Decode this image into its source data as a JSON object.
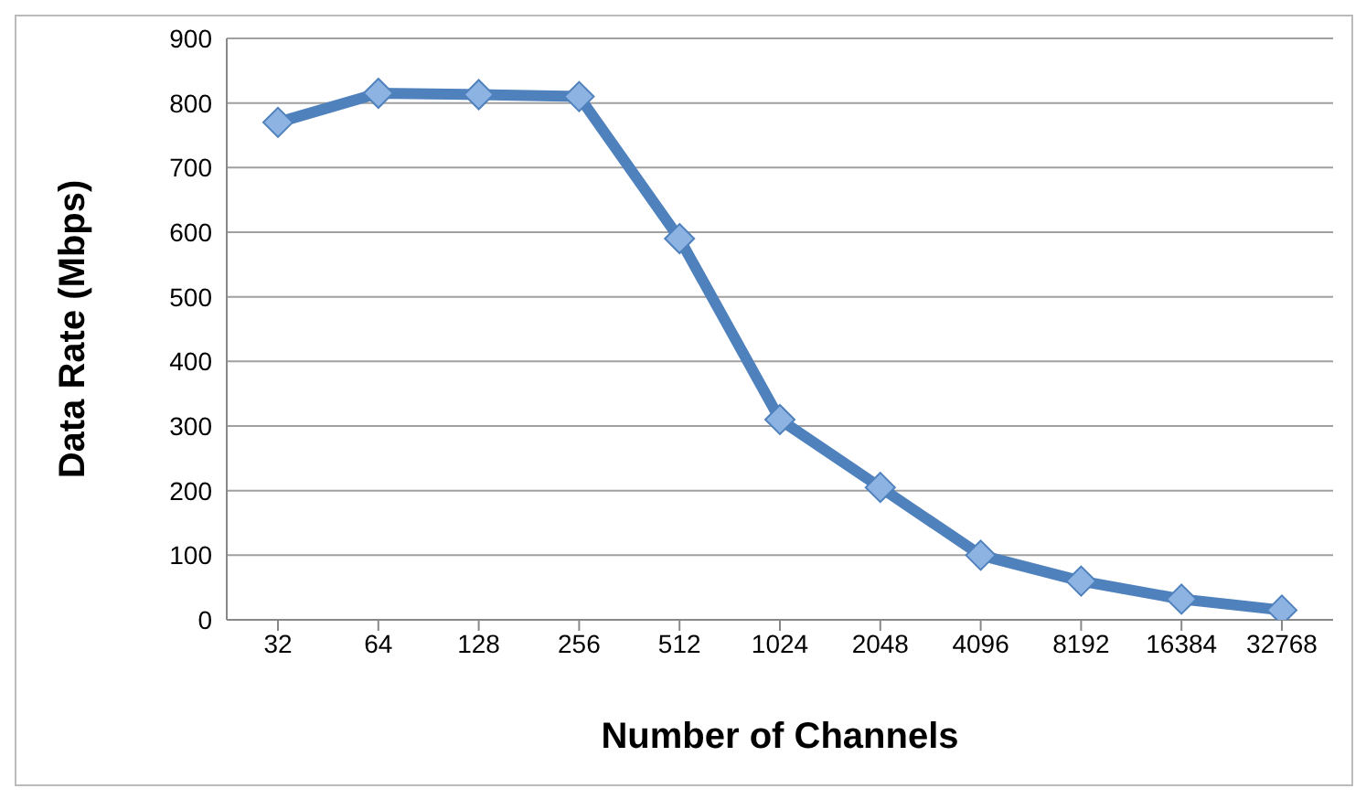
{
  "chart_data": {
    "type": "line",
    "xlabel": "Number of Channels",
    "ylabel": "Data Rate (Mbps)",
    "categories": [
      "32",
      "64",
      "128",
      "256",
      "512",
      "1024",
      "2048",
      "4096",
      "8192",
      "16384",
      "32768"
    ],
    "series": [
      {
        "color": "#4f81bd",
        "values": [
          770,
          815,
          813,
          810,
          590,
          310,
          205,
          100,
          60,
          32,
          15
        ]
      }
    ],
    "ylim": [
      0,
      900
    ],
    "yticks": [
      0,
      100,
      200,
      300,
      400,
      500,
      600,
      700,
      800,
      900
    ],
    "grid": "y",
    "legend": false,
    "marker": "diamond",
    "line_style": "solid"
  }
}
